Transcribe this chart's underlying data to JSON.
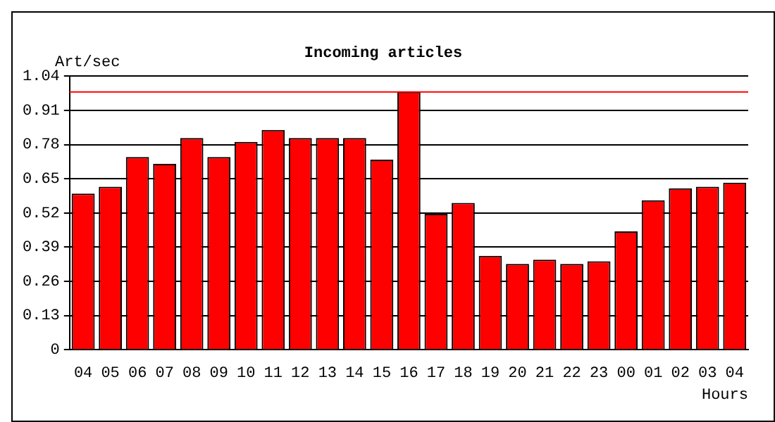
{
  "chart_data": {
    "type": "bar",
    "title": "Incoming articles",
    "ylabel": "Art/sec",
    "xlabel": "Hours",
    "categories": [
      "04",
      "05",
      "06",
      "07",
      "08",
      "09",
      "10",
      "11",
      "12",
      "13",
      "14",
      "15",
      "16",
      "17",
      "18",
      "19",
      "20",
      "21",
      "22",
      "23",
      "00",
      "01",
      "02",
      "03",
      "04"
    ],
    "series": [
      {
        "color": "#ff0000",
        "values": [
          0.594,
          0.62,
          0.733,
          0.707,
          0.805,
          0.733,
          0.79,
          0.836,
          0.805,
          0.805,
          0.805,
          0.723,
          0.98,
          0.517,
          0.558,
          0.357,
          0.326,
          0.342,
          0.326,
          0.336,
          0.45,
          0.568,
          0.614,
          0.62,
          0.635
        ]
      }
    ],
    "ylim": [
      0,
      1.04
    ],
    "yticks": [
      0,
      0.13,
      0.26,
      0.39,
      0.52,
      0.65,
      0.78,
      0.91,
      1.04
    ],
    "ref_lines": [
      {
        "axis": "y",
        "value": 0.98,
        "color": "#ff0000"
      }
    ],
    "grid": "y",
    "legend": false
  }
}
